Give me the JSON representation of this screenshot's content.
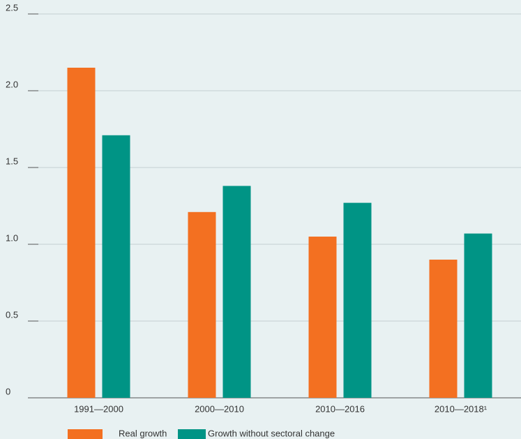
{
  "chart_data": {
    "type": "bar",
    "categories": [
      "1991—2000",
      "2000—2010",
      "2010—2016",
      "2010—2018¹"
    ],
    "series": [
      {
        "name": "Real growth",
        "color": "#f37021",
        "values": [
          2.15,
          1.21,
          1.05,
          0.9
        ]
      },
      {
        "name": "Growth without sectoral change",
        "color": "#009485",
        "values": [
          1.71,
          1.38,
          1.27,
          1.07
        ]
      }
    ],
    "ylim": [
      0,
      2.5
    ],
    "yticks": [
      0,
      0.5,
      {
        "value": 1,
        "label": "1.0"
      },
      1.5,
      {
        "value": 2,
        "label": "2.0"
      },
      2.5
    ],
    "grid": true
  }
}
